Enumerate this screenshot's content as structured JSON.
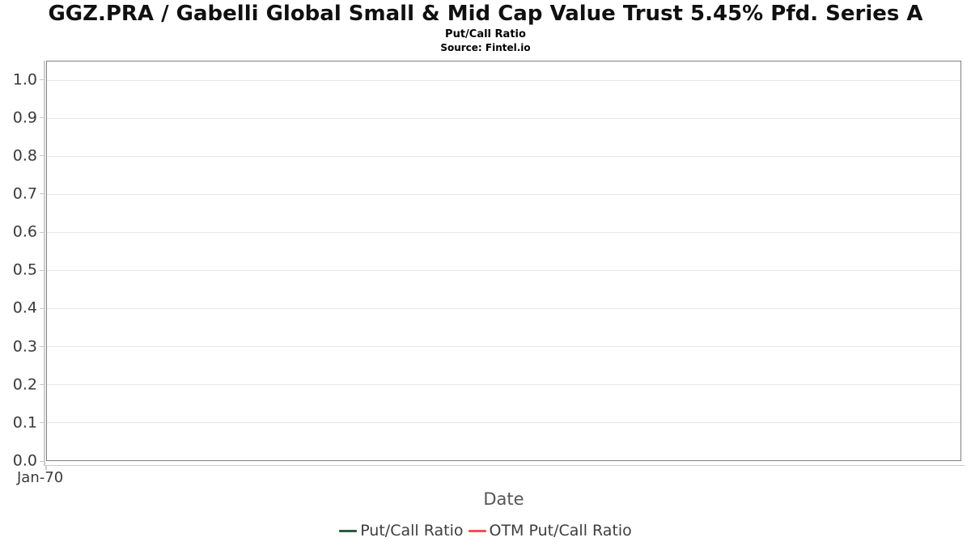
{
  "header": {
    "title": "GGZ.PRA / Gabelli Global Small & Mid Cap Value Trust 5.45% Pfd. Series A",
    "subtitle": "Put/Call Ratio",
    "source": "Source: Fintel.io"
  },
  "chart_data": {
    "type": "line",
    "title": "GGZ.PRA / Gabelli Global Small & Mid Cap Value Trust 5.45% Pfd. Series A",
    "subtitle": "Put/Call Ratio",
    "source": "Source: Fintel.io",
    "xlabel": "Date",
    "ylabel": "",
    "x_tick_labels": [
      "Jan-70"
    ],
    "y_tick_labels": [
      "0.0",
      "0.1",
      "0.2",
      "0.3",
      "0.4",
      "0.5",
      "0.6",
      "0.7",
      "0.8",
      "0.9",
      "1.0"
    ],
    "ylim": [
      0,
      1.05
    ],
    "grid": true,
    "legend_position": "bottom",
    "series": [
      {
        "name": "Put/Call Ratio",
        "color": "#2b5c3a",
        "x": [],
        "values": []
      },
      {
        "name": "OTM Put/Call Ratio",
        "color": "#ef5350",
        "x": [],
        "values": []
      }
    ]
  },
  "legend": {
    "items": [
      {
        "label": "Put/Call Ratio",
        "color": "#2b5c3a"
      },
      {
        "label": "OTM Put/Call Ratio",
        "color": "#ef5350"
      }
    ]
  },
  "colors": {
    "plot_border": "#808080",
    "gridline": "#e7e7e7",
    "axis_line": "#cccccc",
    "title_text": "#101010",
    "axis_text": "#3a3a3a",
    "axis_title_text": "#555555"
  }
}
